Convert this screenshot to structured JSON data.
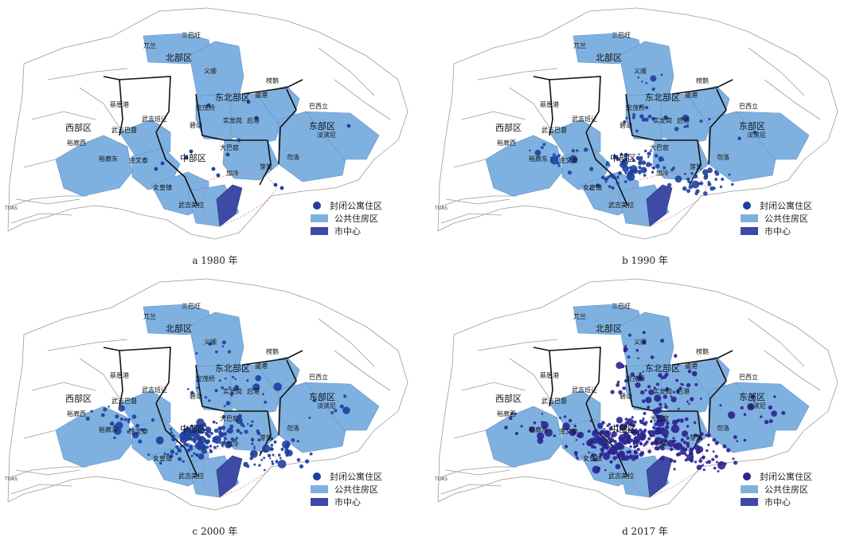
{
  "colors": {
    "housing": "#7fb1e0",
    "center": "#3e4aa6",
    "dot_early": "#1f3fa0",
    "dot_late": "#2b2490",
    "boundary": "#111111",
    "outline": "#9a9a9a",
    "center_outline": "#e07070"
  },
  "legend": {
    "condo": "封闭公寓住区",
    "housing": "公共住房区",
    "center": "市中心"
  },
  "region_labels": {
    "north": "北部区",
    "northeast": "东北部区",
    "west": "西部区",
    "east": "东部区",
    "central": "中部区"
  },
  "town_labels": {
    "sembawang": "三巴旺",
    "woodlands": "兀兰",
    "yishun": "义顺",
    "punggol": "榜鹅",
    "sengkang": "盛港",
    "hougang": "后港",
    "angmokio": "宏茂桥",
    "serangoon": "实龙岗",
    "bishan": "碧山",
    "pasirris": "巴西立",
    "tampines": "淡滨尼",
    "bedok": "勿洛",
    "chuachukang": "蔡厝港",
    "bukitpanjang": "武吉班让",
    "bukitbatok": "武吉巴督",
    "jurongwest": "裕廊西",
    "jurongeast": "裕廊东",
    "clementi": "金文泰",
    "queenstown": "女皇镇",
    "bukitmerah": "武吉美拉",
    "toapayoh": "大巴窑",
    "geylang": "芽笼",
    "kallang": "加冷"
  },
  "small_label": "TUAS",
  "panels": [
    {
      "id": "a",
      "caption": "a 1980 年",
      "dot_count": 14
    },
    {
      "id": "b",
      "caption": "b 1990 年",
      "dot_count": 150
    },
    {
      "id": "c",
      "caption": "c 2000 年",
      "dot_count": 260
    },
    {
      "id": "d",
      "caption": "d 2017 年",
      "dot_count": 420
    }
  ]
}
